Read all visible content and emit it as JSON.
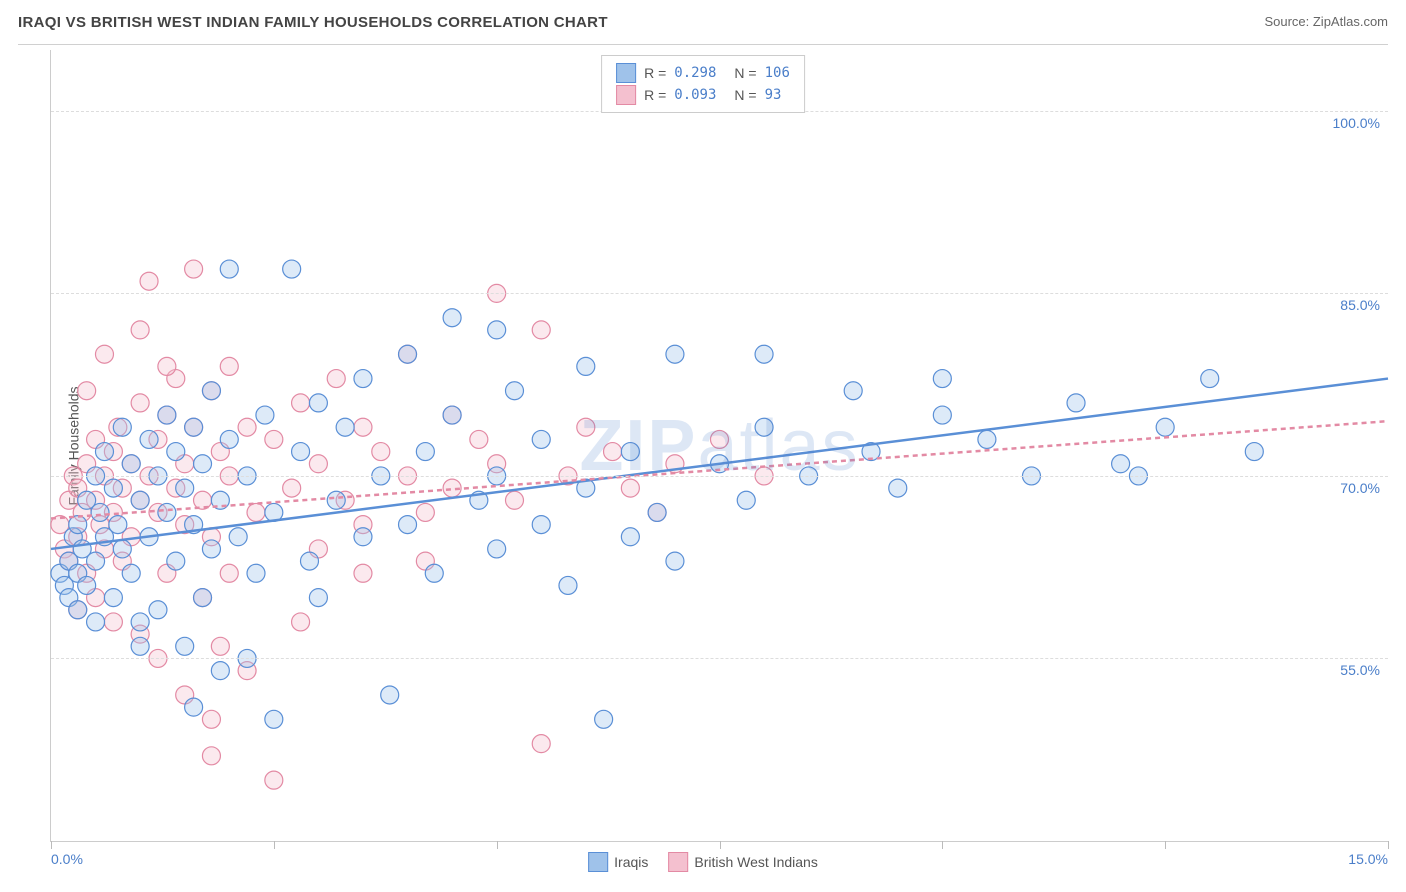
{
  "header": {
    "title": "IRAQI VS BRITISH WEST INDIAN FAMILY HOUSEHOLDS CORRELATION CHART",
    "source": "Source: ZipAtlas.com"
  },
  "watermark": {
    "part1": "ZIP",
    "part2": "atlas"
  },
  "chart": {
    "type": "scatter",
    "background_color": "#ffffff",
    "grid_color": "#dddddd",
    "axis_color": "#cccccc",
    "tick_color": "#bbbbbb",
    "axis_label_color": "#4a7ec9",
    "ylabel": "Family Households",
    "ylabel_color": "#555555",
    "ylabel_fontsize": 14,
    "xlim": [
      0,
      15
    ],
    "ylim": [
      40,
      105
    ],
    "xtick_positions": [
      0,
      2.5,
      5,
      7.5,
      10,
      12.5,
      15
    ],
    "ytick_positions": [
      55,
      70,
      85,
      100
    ],
    "xtick_labels": {
      "min": "0.0%",
      "max": "15.0%"
    },
    "ytick_labels": [
      "55.0%",
      "70.0%",
      "85.0%",
      "100.0%"
    ],
    "marker_radius": 9,
    "marker_stroke_width": 1.2,
    "marker_fill_opacity": 0.35,
    "trend_line_width": 2.5,
    "series": [
      {
        "name": "Iraqis",
        "color_stroke": "#5a8fd6",
        "color_fill": "#9fc2ea",
        "r_value": "0.298",
        "n_value": "106",
        "trend": {
          "x1": 0,
          "y1": 64,
          "x2": 15,
          "y2": 78,
          "dash": "none"
        },
        "points": [
          [
            0.1,
            62
          ],
          [
            0.15,
            61
          ],
          [
            0.2,
            63
          ],
          [
            0.2,
            60
          ],
          [
            0.25,
            65
          ],
          [
            0.3,
            62
          ],
          [
            0.3,
            66
          ],
          [
            0.35,
            64
          ],
          [
            0.4,
            61
          ],
          [
            0.4,
            68
          ],
          [
            0.5,
            63
          ],
          [
            0.5,
            70
          ],
          [
            0.55,
            67
          ],
          [
            0.6,
            65
          ],
          [
            0.6,
            72
          ],
          [
            0.7,
            69
          ],
          [
            0.7,
            60
          ],
          [
            0.75,
            66
          ],
          [
            0.8,
            64
          ],
          [
            0.8,
            74
          ],
          [
            0.9,
            62
          ],
          [
            0.9,
            71
          ],
          [
            1.0,
            68
          ],
          [
            1.0,
            58
          ],
          [
            1.1,
            73
          ],
          [
            1.1,
            65
          ],
          [
            1.2,
            70
          ],
          [
            1.2,
            59
          ],
          [
            1.3,
            67
          ],
          [
            1.3,
            75
          ],
          [
            1.4,
            63
          ],
          [
            1.4,
            72
          ],
          [
            1.5,
            69
          ],
          [
            1.5,
            56
          ],
          [
            1.6,
            74
          ],
          [
            1.6,
            66
          ],
          [
            1.7,
            71
          ],
          [
            1.7,
            60
          ],
          [
            1.8,
            77
          ],
          [
            1.8,
            64
          ],
          [
            1.9,
            68
          ],
          [
            1.9,
            54
          ],
          [
            2.0,
            73
          ],
          [
            2.0,
            87
          ],
          [
            2.1,
            65
          ],
          [
            2.2,
            70
          ],
          [
            2.3,
            62
          ],
          [
            2.4,
            75
          ],
          [
            2.5,
            67
          ],
          [
            2.5,
            50
          ],
          [
            2.7,
            87
          ],
          [
            2.8,
            72
          ],
          [
            2.9,
            63
          ],
          [
            3.0,
            76
          ],
          [
            3.0,
            60
          ],
          [
            3.2,
            68
          ],
          [
            3.3,
            74
          ],
          [
            3.5,
            65
          ],
          [
            3.5,
            78
          ],
          [
            3.7,
            70
          ],
          [
            3.8,
            52
          ],
          [
            4.0,
            66
          ],
          [
            4.0,
            80
          ],
          [
            4.2,
            72
          ],
          [
            4.3,
            62
          ],
          [
            4.5,
            75
          ],
          [
            4.5,
            83
          ],
          [
            4.8,
            68
          ],
          [
            5.0,
            70
          ],
          [
            5.0,
            64
          ],
          [
            5.2,
            77
          ],
          [
            5.5,
            66
          ],
          [
            5.5,
            73
          ],
          [
            5.8,
            61
          ],
          [
            6.0,
            79
          ],
          [
            6.0,
            69
          ],
          [
            6.2,
            50
          ],
          [
            6.5,
            72
          ],
          [
            6.5,
            65
          ],
          [
            6.8,
            67
          ],
          [
            7.0,
            80
          ],
          [
            7.0,
            63
          ],
          [
            7.5,
            71
          ],
          [
            7.8,
            68
          ],
          [
            8.0,
            74
          ],
          [
            8.0,
            80
          ],
          [
            8.5,
            70
          ],
          [
            9.0,
            77
          ],
          [
            9.2,
            72
          ],
          [
            9.5,
            69
          ],
          [
            10.0,
            75
          ],
          [
            10.0,
            78
          ],
          [
            10.5,
            73
          ],
          [
            11.0,
            70
          ],
          [
            11.5,
            76
          ],
          [
            12.0,
            71
          ],
          [
            12.2,
            70
          ],
          [
            12.5,
            74
          ],
          [
            13.0,
            78
          ],
          [
            13.5,
            72
          ],
          [
            1.6,
            51
          ],
          [
            2.2,
            55
          ],
          [
            0.3,
            59
          ],
          [
            0.5,
            58
          ],
          [
            1.0,
            56
          ],
          [
            5.0,
            82
          ]
        ]
      },
      {
        "name": "British West Indians",
        "color_stroke": "#e38aa4",
        "color_fill": "#f4c0cf",
        "r_value": "0.093",
        "n_value": "93",
        "trend": {
          "x1": 0,
          "y1": 66.5,
          "x2": 15,
          "y2": 74.5,
          "dash": "5,4"
        },
        "points": [
          [
            0.1,
            66
          ],
          [
            0.15,
            64
          ],
          [
            0.2,
            68
          ],
          [
            0.2,
            63
          ],
          [
            0.25,
            70
          ],
          [
            0.3,
            65
          ],
          [
            0.3,
            69
          ],
          [
            0.35,
            67
          ],
          [
            0.4,
            62
          ],
          [
            0.4,
            71
          ],
          [
            0.5,
            68
          ],
          [
            0.5,
            73
          ],
          [
            0.55,
            66
          ],
          [
            0.6,
            70
          ],
          [
            0.6,
            64
          ],
          [
            0.7,
            72
          ],
          [
            0.7,
            67
          ],
          [
            0.75,
            74
          ],
          [
            0.8,
            63
          ],
          [
            0.8,
            69
          ],
          [
            0.9,
            71
          ],
          [
            0.9,
            65
          ],
          [
            1.0,
            76
          ],
          [
            1.0,
            68
          ],
          [
            1.1,
            86
          ],
          [
            1.1,
            70
          ],
          [
            1.2,
            67
          ],
          [
            1.2,
            73
          ],
          [
            1.3,
            62
          ],
          [
            1.3,
            75
          ],
          [
            1.4,
            69
          ],
          [
            1.4,
            78
          ],
          [
            1.5,
            66
          ],
          [
            1.5,
            71
          ],
          [
            1.6,
            74
          ],
          [
            1.6,
            87
          ],
          [
            1.7,
            68
          ],
          [
            1.7,
            60
          ],
          [
            1.8,
            77
          ],
          [
            1.8,
            65
          ],
          [
            1.9,
            72
          ],
          [
            1.9,
            56
          ],
          [
            2.0,
            70
          ],
          [
            2.0,
            79
          ],
          [
            2.2,
            74
          ],
          [
            2.3,
            67
          ],
          [
            2.5,
            73
          ],
          [
            2.5,
            45
          ],
          [
            2.7,
            69
          ],
          [
            2.8,
            76
          ],
          [
            3.0,
            71
          ],
          [
            3.0,
            64
          ],
          [
            3.2,
            78
          ],
          [
            3.3,
            68
          ],
          [
            3.5,
            74
          ],
          [
            3.5,
            66
          ],
          [
            3.7,
            72
          ],
          [
            4.0,
            70
          ],
          [
            4.0,
            80
          ],
          [
            4.2,
            67
          ],
          [
            4.5,
            75
          ],
          [
            4.5,
            69
          ],
          [
            4.8,
            73
          ],
          [
            5.0,
            71
          ],
          [
            5.0,
            85
          ],
          [
            5.2,
            68
          ],
          [
            5.5,
            82
          ],
          [
            5.8,
            70
          ],
          [
            6.0,
            74
          ],
          [
            6.3,
            72
          ],
          [
            6.5,
            69
          ],
          [
            6.8,
            67
          ],
          [
            7.0,
            71
          ],
          [
            7.5,
            73
          ],
          [
            8.0,
            70
          ],
          [
            1.2,
            55
          ],
          [
            1.5,
            52
          ],
          [
            1.8,
            50
          ],
          [
            0.5,
            60
          ],
          [
            0.3,
            59
          ],
          [
            0.7,
            58
          ],
          [
            1.0,
            57
          ],
          [
            1.8,
            47
          ],
          [
            2.2,
            54
          ],
          [
            3.5,
            62
          ],
          [
            2.8,
            58
          ],
          [
            4.2,
            63
          ],
          [
            0.4,
            77
          ],
          [
            0.6,
            80
          ],
          [
            1.0,
            82
          ],
          [
            1.3,
            79
          ],
          [
            5.5,
            48
          ],
          [
            2.0,
            62
          ]
        ]
      }
    ]
  },
  "legend_top": {
    "r_label": "R =",
    "n_label": "N ="
  },
  "title_fontsize": 15,
  "source_fontsize": 13
}
